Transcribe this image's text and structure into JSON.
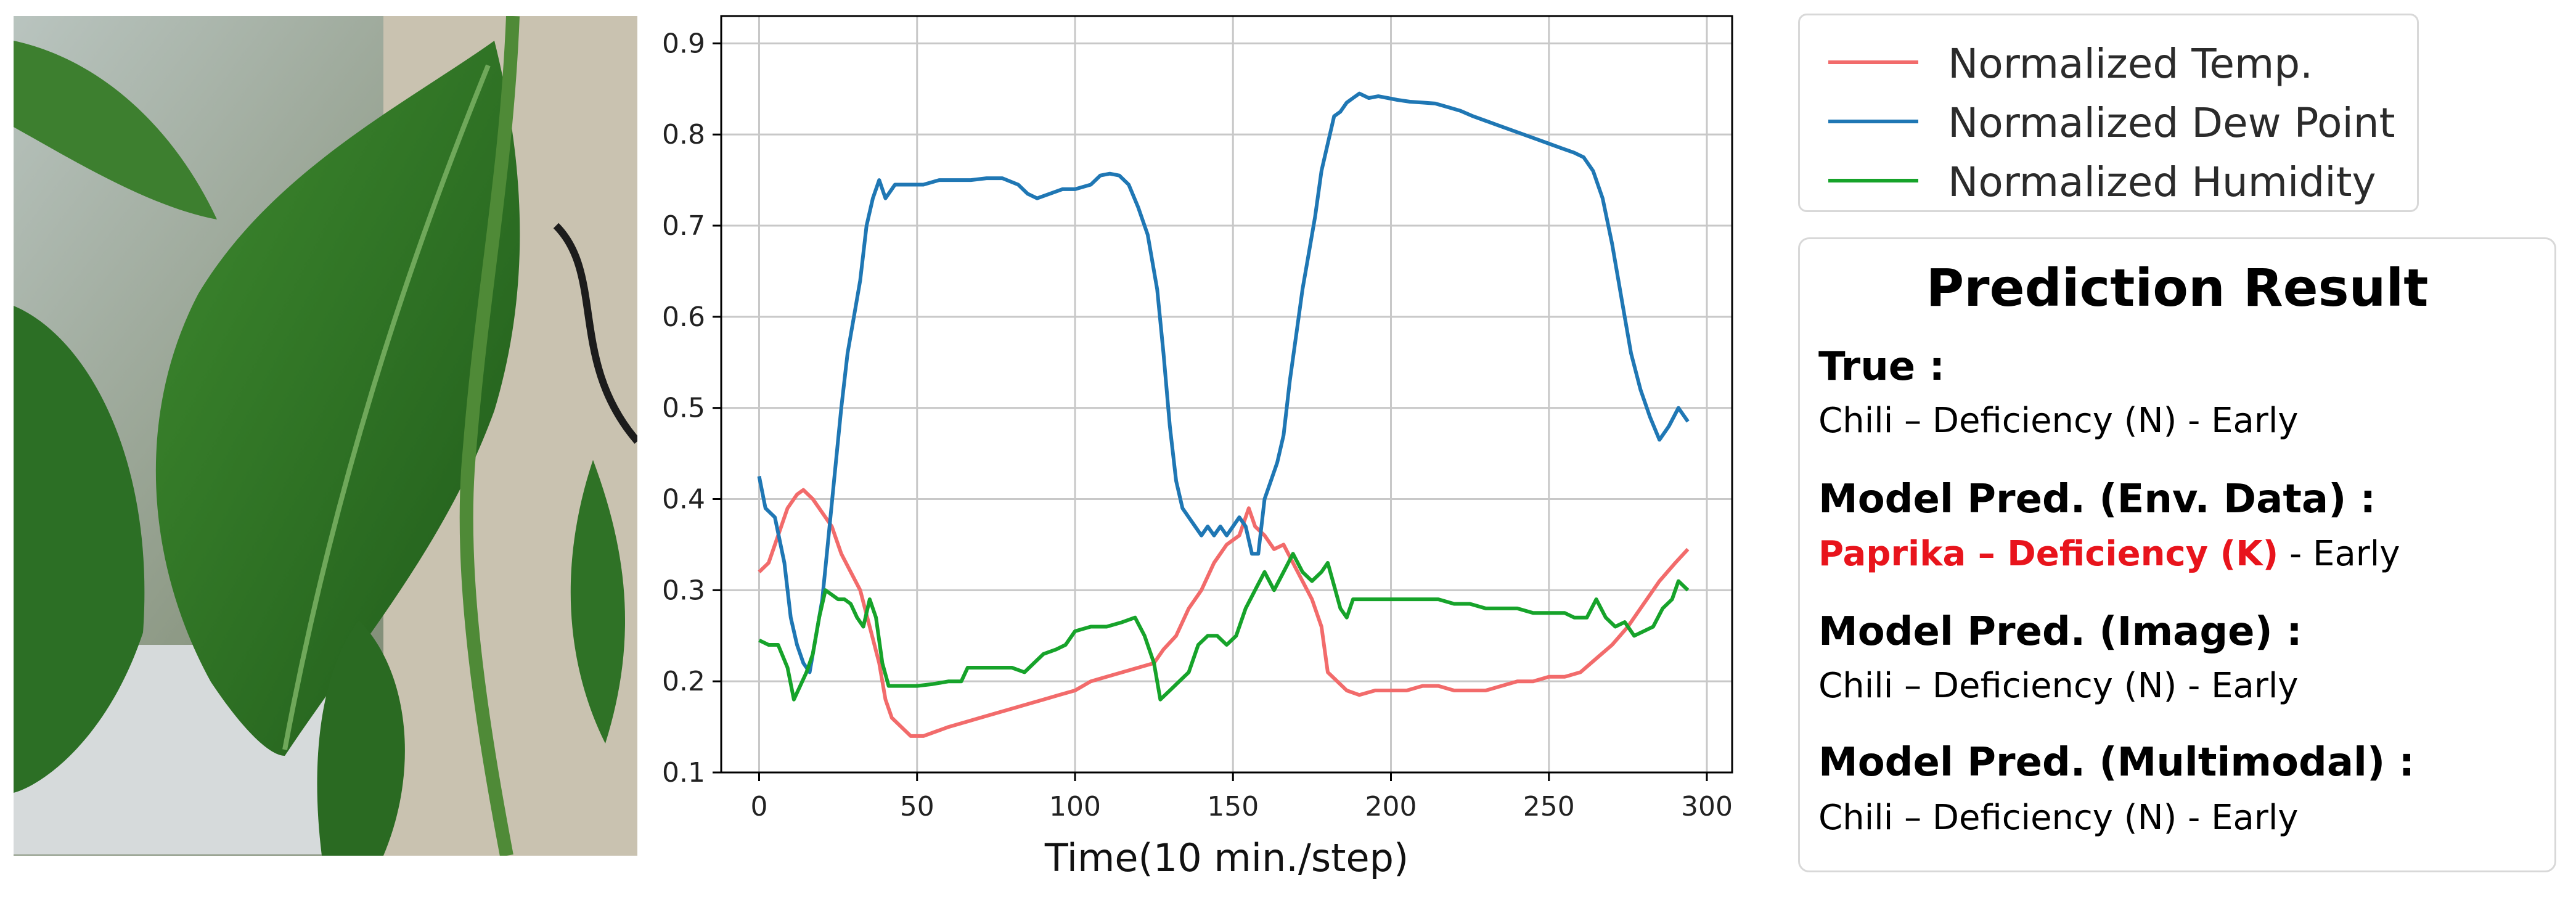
{
  "photo": {
    "subject": "pepper-leaf-photo"
  },
  "chart_data": {
    "type": "line",
    "xlabel": "Time(10 min./step)",
    "ylabel": "",
    "xlim": [
      -12,
      308
    ],
    "ylim": [
      0.1,
      0.93
    ],
    "x_ticks": [
      "0",
      "50",
      "100",
      "150",
      "200",
      "250",
      "300"
    ],
    "y_ticks": [
      "0.1",
      "0.2",
      "0.3",
      "0.4",
      "0.5",
      "0.6",
      "0.7",
      "0.8",
      "0.9"
    ],
    "grid": true,
    "legend_position": "outside-right-top",
    "series": [
      {
        "name": "Normalized Temp.",
        "color": "#f26b6b",
        "points": [
          [
            0,
            0.32
          ],
          [
            3,
            0.33
          ],
          [
            6,
            0.36
          ],
          [
            9,
            0.39
          ],
          [
            12,
            0.405
          ],
          [
            14,
            0.41
          ],
          [
            17,
            0.4
          ],
          [
            20,
            0.385
          ],
          [
            23,
            0.37
          ],
          [
            26,
            0.34
          ],
          [
            29,
            0.32
          ],
          [
            32,
            0.3
          ],
          [
            35,
            0.26
          ],
          [
            38,
            0.22
          ],
          [
            40,
            0.18
          ],
          [
            42,
            0.16
          ],
          [
            45,
            0.15
          ],
          [
            48,
            0.14
          ],
          [
            52,
            0.14
          ],
          [
            56,
            0.145
          ],
          [
            60,
            0.15
          ],
          [
            65,
            0.155
          ],
          [
            70,
            0.16
          ],
          [
            75,
            0.165
          ],
          [
            80,
            0.17
          ],
          [
            85,
            0.175
          ],
          [
            90,
            0.18
          ],
          [
            95,
            0.185
          ],
          [
            100,
            0.19
          ],
          [
            105,
            0.2
          ],
          [
            110,
            0.205
          ],
          [
            115,
            0.21
          ],
          [
            120,
            0.215
          ],
          [
            125,
            0.22
          ],
          [
            128,
            0.235
          ],
          [
            132,
            0.25
          ],
          [
            136,
            0.28
          ],
          [
            140,
            0.3
          ],
          [
            144,
            0.33
          ],
          [
            148,
            0.35
          ],
          [
            152,
            0.36
          ],
          [
            155,
            0.39
          ],
          [
            157,
            0.37
          ],
          [
            160,
            0.36
          ],
          [
            163,
            0.345
          ],
          [
            166,
            0.35
          ],
          [
            169,
            0.33
          ],
          [
            172,
            0.31
          ],
          [
            175,
            0.29
          ],
          [
            178,
            0.26
          ],
          [
            180,
            0.21
          ],
          [
            183,
            0.2
          ],
          [
            186,
            0.19
          ],
          [
            190,
            0.185
          ],
          [
            195,
            0.19
          ],
          [
            200,
            0.19
          ],
          [
            205,
            0.19
          ],
          [
            210,
            0.195
          ],
          [
            215,
            0.195
          ],
          [
            220,
            0.19
          ],
          [
            225,
            0.19
          ],
          [
            230,
            0.19
          ],
          [
            235,
            0.195
          ],
          [
            240,
            0.2
          ],
          [
            245,
            0.2
          ],
          [
            250,
            0.205
          ],
          [
            255,
            0.205
          ],
          [
            260,
            0.21
          ],
          [
            265,
            0.225
          ],
          [
            270,
            0.24
          ],
          [
            275,
            0.26
          ],
          [
            280,
            0.285
          ],
          [
            285,
            0.31
          ],
          [
            290,
            0.33
          ],
          [
            294,
            0.345
          ]
        ]
      },
      {
        "name": "Normalized Dew Point",
        "color": "#1f77b4",
        "points": [
          [
            0,
            0.425
          ],
          [
            2,
            0.39
          ],
          [
            5,
            0.38
          ],
          [
            8,
            0.33
          ],
          [
            10,
            0.27
          ],
          [
            12,
            0.24
          ],
          [
            14,
            0.22
          ],
          [
            16,
            0.21
          ],
          [
            18,
            0.25
          ],
          [
            20,
            0.29
          ],
          [
            22,
            0.36
          ],
          [
            24,
            0.43
          ],
          [
            26,
            0.5
          ],
          [
            28,
            0.56
          ],
          [
            30,
            0.6
          ],
          [
            32,
            0.64
          ],
          [
            34,
            0.7
          ],
          [
            36,
            0.73
          ],
          [
            38,
            0.75
          ],
          [
            40,
            0.73
          ],
          [
            43,
            0.745
          ],
          [
            47,
            0.745
          ],
          [
            52,
            0.745
          ],
          [
            57,
            0.75
          ],
          [
            62,
            0.75
          ],
          [
            67,
            0.75
          ],
          [
            72,
            0.752
          ],
          [
            77,
            0.752
          ],
          [
            82,
            0.745
          ],
          [
            85,
            0.735
          ],
          [
            88,
            0.73
          ],
          [
            92,
            0.735
          ],
          [
            96,
            0.74
          ],
          [
            100,
            0.74
          ],
          [
            105,
            0.745
          ],
          [
            108,
            0.755
          ],
          [
            111,
            0.757
          ],
          [
            114,
            0.755
          ],
          [
            117,
            0.745
          ],
          [
            120,
            0.72
          ],
          [
            123,
            0.69
          ],
          [
            126,
            0.63
          ],
          [
            128,
            0.56
          ],
          [
            130,
            0.48
          ],
          [
            132,
            0.42
          ],
          [
            134,
            0.39
          ],
          [
            136,
            0.38
          ],
          [
            138,
            0.37
          ],
          [
            140,
            0.36
          ],
          [
            142,
            0.37
          ],
          [
            144,
            0.36
          ],
          [
            146,
            0.37
          ],
          [
            148,
            0.36
          ],
          [
            150,
            0.37
          ],
          [
            152,
            0.38
          ],
          [
            154,
            0.37
          ],
          [
            156,
            0.34
          ],
          [
            158,
            0.34
          ],
          [
            160,
            0.4
          ],
          [
            162,
            0.42
          ],
          [
            164,
            0.44
          ],
          [
            166,
            0.47
          ],
          [
            168,
            0.53
          ],
          [
            170,
            0.58
          ],
          [
            172,
            0.63
          ],
          [
            174,
            0.67
          ],
          [
            176,
            0.71
          ],
          [
            178,
            0.76
          ],
          [
            180,
            0.79
          ],
          [
            182,
            0.82
          ],
          [
            184,
            0.825
          ],
          [
            186,
            0.835
          ],
          [
            188,
            0.84
          ],
          [
            190,
            0.845
          ],
          [
            193,
            0.84
          ],
          [
            196,
            0.842
          ],
          [
            199,
            0.84
          ],
          [
            202,
            0.838
          ],
          [
            206,
            0.836
          ],
          [
            210,
            0.835
          ],
          [
            214,
            0.834
          ],
          [
            218,
            0.83
          ],
          [
            222,
            0.826
          ],
          [
            226,
            0.82
          ],
          [
            230,
            0.815
          ],
          [
            234,
            0.81
          ],
          [
            238,
            0.805
          ],
          [
            242,
            0.8
          ],
          [
            246,
            0.795
          ],
          [
            250,
            0.79
          ],
          [
            254,
            0.785
          ],
          [
            258,
            0.78
          ],
          [
            261,
            0.775
          ],
          [
            264,
            0.76
          ],
          [
            267,
            0.73
          ],
          [
            270,
            0.68
          ],
          [
            273,
            0.62
          ],
          [
            276,
            0.56
          ],
          [
            279,
            0.52
          ],
          [
            282,
            0.49
          ],
          [
            285,
            0.465
          ],
          [
            288,
            0.48
          ],
          [
            291,
            0.5
          ],
          [
            294,
            0.485
          ]
        ]
      },
      {
        "name": "Normalized Humidity",
        "color": "#16a32a",
        "points": [
          [
            0,
            0.245
          ],
          [
            3,
            0.24
          ],
          [
            6,
            0.24
          ],
          [
            9,
            0.215
          ],
          [
            11,
            0.18
          ],
          [
            13,
            0.195
          ],
          [
            15,
            0.21
          ],
          [
            17,
            0.23
          ],
          [
            19,
            0.27
          ],
          [
            21,
            0.3
          ],
          [
            23,
            0.295
          ],
          [
            25,
            0.29
          ],
          [
            27,
            0.29
          ],
          [
            29,
            0.285
          ],
          [
            31,
            0.27
          ],
          [
            33,
            0.26
          ],
          [
            35,
            0.29
          ],
          [
            37,
            0.27
          ],
          [
            39,
            0.22
          ],
          [
            41,
            0.195
          ],
          [
            45,
            0.195
          ],
          [
            50,
            0.195
          ],
          [
            55,
            0.197
          ],
          [
            60,
            0.2
          ],
          [
            64,
            0.2
          ],
          [
            66,
            0.215
          ],
          [
            70,
            0.215
          ],
          [
            75,
            0.215
          ],
          [
            80,
            0.215
          ],
          [
            84,
            0.21
          ],
          [
            87,
            0.22
          ],
          [
            90,
            0.23
          ],
          [
            94,
            0.235
          ],
          [
            97,
            0.24
          ],
          [
            100,
            0.255
          ],
          [
            105,
            0.26
          ],
          [
            110,
            0.26
          ],
          [
            115,
            0.265
          ],
          [
            119,
            0.27
          ],
          [
            122,
            0.25
          ],
          [
            125,
            0.22
          ],
          [
            127,
            0.18
          ],
          [
            130,
            0.19
          ],
          [
            133,
            0.2
          ],
          [
            136,
            0.21
          ],
          [
            139,
            0.24
          ],
          [
            142,
            0.25
          ],
          [
            145,
            0.25
          ],
          [
            148,
            0.24
          ],
          [
            151,
            0.25
          ],
          [
            154,
            0.28
          ],
          [
            157,
            0.3
          ],
          [
            160,
            0.32
          ],
          [
            163,
            0.3
          ],
          [
            166,
            0.32
          ],
          [
            169,
            0.34
          ],
          [
            172,
            0.32
          ],
          [
            175,
            0.31
          ],
          [
            178,
            0.32
          ],
          [
            180,
            0.33
          ],
          [
            182,
            0.305
          ],
          [
            184,
            0.28
          ],
          [
            186,
            0.27
          ],
          [
            188,
            0.29
          ],
          [
            192,
            0.29
          ],
          [
            196,
            0.29
          ],
          [
            200,
            0.29
          ],
          [
            205,
            0.29
          ],
          [
            210,
            0.29
          ],
          [
            215,
            0.29
          ],
          [
            220,
            0.285
          ],
          [
            225,
            0.285
          ],
          [
            230,
            0.28
          ],
          [
            235,
            0.28
          ],
          [
            240,
            0.28
          ],
          [
            245,
            0.275
          ],
          [
            250,
            0.275
          ],
          [
            255,
            0.275
          ],
          [
            258,
            0.27
          ],
          [
            262,
            0.27
          ],
          [
            265,
            0.29
          ],
          [
            268,
            0.27
          ],
          [
            271,
            0.26
          ],
          [
            274,
            0.265
          ],
          [
            277,
            0.25
          ],
          [
            280,
            0.255
          ],
          [
            283,
            0.26
          ],
          [
            286,
            0.28
          ],
          [
            289,
            0.29
          ],
          [
            291,
            0.31
          ],
          [
            294,
            0.3
          ]
        ]
      }
    ]
  },
  "legend": {
    "items": [
      {
        "label": "Normalized Temp.",
        "color": "#f26b6b"
      },
      {
        "label": "Normalized Dew Point",
        "color": "#1f77b4"
      },
      {
        "label": "Normalized Humidity",
        "color": "#16a32a"
      }
    ]
  },
  "prediction": {
    "title": "Prediction Result",
    "true_heading": "True :",
    "true_value": "Chili – Deficiency (N) - Early",
    "env_heading": "Model Pred. (Env. Data) :",
    "env_value_red": "Paprika – Deficiency (K)",
    "env_value_rest": " - Early",
    "image_heading": "Model Pred. (Image) :",
    "image_value": "Chili – Deficiency (N) - Early",
    "multi_heading": "Model Pred. (Multimodal) :",
    "multi_value": "Chili – Deficiency (N) - Early"
  },
  "colors": {
    "red_highlight": "#e8141c"
  }
}
